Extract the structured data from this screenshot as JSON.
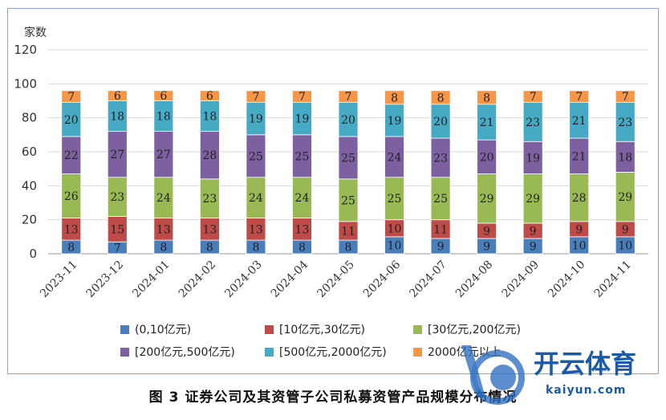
{
  "chart_data": {
    "type": "bar",
    "stacked": true,
    "ylabel": "家数",
    "ylim": [
      0,
      120
    ],
    "yticks": [
      0,
      20,
      40,
      60,
      80,
      100,
      120
    ],
    "categories": [
      "2023-11",
      "2023-12",
      "2024-01",
      "2024-02",
      "2024-03",
      "2024-04",
      "2024-05",
      "2024-06",
      "2024-07",
      "2024-08",
      "2024-09",
      "2024-10",
      "2024-11"
    ],
    "series": [
      {
        "name": "(0,10亿元)",
        "color": "#4a7ebb",
        "values": [
          8,
          7,
          8,
          8,
          8,
          8,
          8,
          10,
          9,
          9,
          9,
          10,
          10
        ]
      },
      {
        "name": "[10亿元,30亿元)",
        "color": "#be4b48",
        "values": [
          13,
          15,
          13,
          13,
          13,
          13,
          11,
          10,
          11,
          9,
          9,
          9,
          9
        ]
      },
      {
        "name": "[30亿元,200亿元)",
        "color": "#98b954",
        "values": [
          26,
          23,
          24,
          23,
          24,
          24,
          25,
          25,
          25,
          29,
          29,
          28,
          29
        ]
      },
      {
        "name": "[200亿元,500亿元)",
        "color": "#7d60a0",
        "values": [
          22,
          27,
          27,
          28,
          25,
          25,
          25,
          24,
          23,
          20,
          19,
          21,
          18
        ]
      },
      {
        "name": "[500亿元,2000亿元)",
        "color": "#46aac5",
        "values": [
          20,
          18,
          18,
          18,
          19,
          19,
          20,
          19,
          20,
          21,
          23,
          21,
          23
        ]
      },
      {
        "name": "2000亿元以上",
        "color": "#f79646",
        "values": [
          7,
          6,
          6,
          6,
          7,
          7,
          7,
          8,
          8,
          8,
          7,
          7,
          7
        ]
      }
    ],
    "legend": "bottom",
    "grid": true
  },
  "caption": "图 3   证券公司及其资管子公司私募资管产品规模分布情况",
  "watermark": {
    "text": "开云体育",
    "url": "kaiyun.com"
  }
}
